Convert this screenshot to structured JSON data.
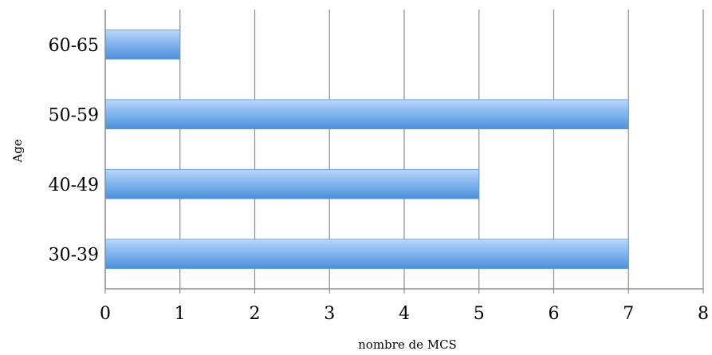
{
  "chart_data": {
    "type": "bar",
    "orientation": "horizontal",
    "title": "",
    "xlabel": "nombre de MCS",
    "ylabel": "Age",
    "categories": [
      "30-39",
      "40-49",
      "50-59",
      "60-65"
    ],
    "values": [
      7,
      5,
      7,
      1
    ],
    "xlim": [
      0,
      8
    ],
    "xticks": [
      "0",
      "1",
      "2",
      "3",
      "4",
      "5",
      "6",
      "7",
      "8"
    ],
    "grid": true,
    "legend": "none",
    "bar_color_light": "#b8d8fb",
    "bar_color_dark": "#4a90d9"
  }
}
